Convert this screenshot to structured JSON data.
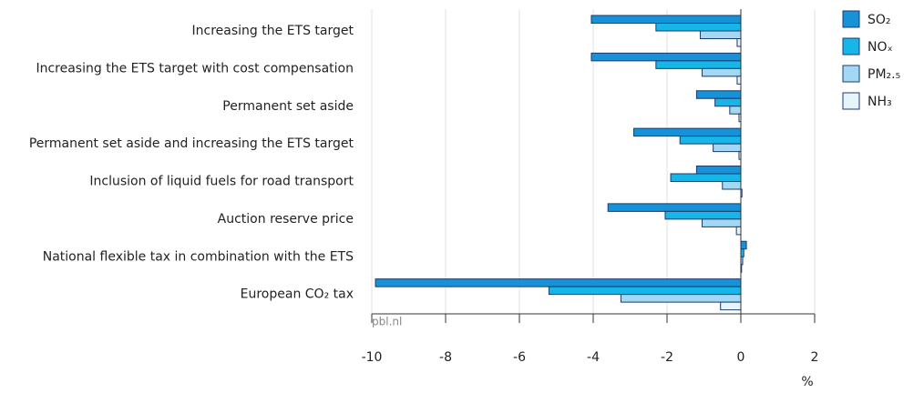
{
  "chart_data": {
    "type": "barh",
    "categories": [
      "Increasing the ETS target",
      "Increasing the ETS target with cost compensation",
      "Permanent set aside",
      "Permanent set aside and increasing the ETS target",
      "Inclusion of liquid fuels for road transport",
      "Auction reserve price",
      "National flexible tax in combination with the ETS",
      "European CO₂ tax"
    ],
    "series": [
      {
        "name": "SO₂",
        "color": "#1692d8",
        "values": [
          -4.05,
          -4.05,
          -1.2,
          -2.9,
          -1.2,
          -3.6,
          0.15,
          -9.9
        ]
      },
      {
        "name": "NOₓ",
        "color": "#16b6e8",
        "values": [
          -2.3,
          -2.3,
          -0.7,
          -1.65,
          -1.9,
          -2.05,
          0.08,
          -5.2
        ]
      },
      {
        "name": "PM₂.₅",
        "color": "#a2d8f3",
        "values": [
          -1.1,
          -1.05,
          -0.3,
          -0.75,
          -0.5,
          -1.05,
          0.05,
          -3.25
        ]
      },
      {
        "name": "NH₃",
        "color": "#e6f4fc",
        "values": [
          -0.1,
          -0.1,
          -0.05,
          -0.05,
          0.03,
          -0.12,
          0.02,
          -0.55
        ]
      }
    ],
    "xlim": [
      -10,
      2
    ],
    "xticks": [
      -10,
      -8,
      -6,
      -4,
      -2,
      0,
      2
    ],
    "xlabel": "%",
    "source": "pbl.nl",
    "grid": true,
    "legend": "right"
  }
}
